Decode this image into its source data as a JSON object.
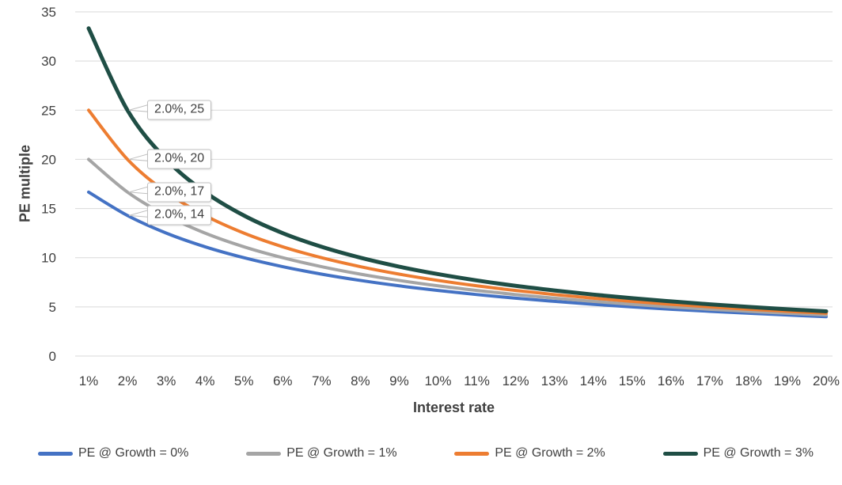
{
  "chart_data": {
    "type": "line",
    "title": "",
    "xlabel": "Interest rate",
    "ylabel": "PE multiple",
    "categories": [
      "1%",
      "2%",
      "3%",
      "4%",
      "5%",
      "6%",
      "7%",
      "8%",
      "9%",
      "10%",
      "11%",
      "12%",
      "13%",
      "14%",
      "15%",
      "16%",
      "17%",
      "18%",
      "19%",
      "20%"
    ],
    "y_ticks": [
      0,
      5,
      10,
      15,
      20,
      25,
      30,
      35
    ],
    "ylim": [
      0,
      35
    ],
    "grid": "horizontal",
    "legend_position": "bottom",
    "colors": {
      "text": "#404040",
      "gridline": "#D9D9D9",
      "callout_border": "#BFBFBF",
      "background": "#FFFFFF"
    },
    "series": [
      {
        "name": "PE @ Growth = 0%",
        "color": "#4472C4",
        "values": [
          16.67,
          14.29,
          12.5,
          11.11,
          10,
          9.09,
          8.33,
          7.69,
          7.14,
          6.67,
          6.25,
          5.88,
          5.56,
          5.26,
          5,
          4.76,
          4.55,
          4.35,
          4.17,
          4
        ]
      },
      {
        "name": "PE @ Growth = 1%",
        "color": "#A5A5A5",
        "values": [
          20,
          16.67,
          14.29,
          12.5,
          11.11,
          10,
          9.09,
          8.33,
          7.69,
          7.14,
          6.67,
          6.25,
          5.88,
          5.56,
          5.26,
          5,
          4.76,
          4.55,
          4.35,
          4.17
        ]
      },
      {
        "name": "PE @ Growth = 2%",
        "color": "#ED7D31",
        "values": [
          25,
          20,
          16.67,
          14.29,
          12.5,
          11.11,
          10,
          9.09,
          8.33,
          7.69,
          7.14,
          6.67,
          6.25,
          5.88,
          5.56,
          5.26,
          5,
          4.76,
          4.55,
          4.35
        ]
      },
      {
        "name": "PE @ Growth = 3%",
        "color": "#1F4E45",
        "values": [
          33.33,
          25,
          20,
          16.67,
          14.29,
          12.5,
          11.11,
          10,
          9.09,
          8.33,
          7.69,
          7.14,
          6.67,
          6.25,
          5.88,
          5.56,
          5.26,
          5,
          4.76,
          4.55
        ]
      }
    ],
    "annotations": [
      {
        "label": "2.0%, 25",
        "series": 3,
        "x_index": 1
      },
      {
        "label": "2.0%, 20",
        "series": 2,
        "x_index": 1
      },
      {
        "label": "2.0%, 17",
        "series": 1,
        "x_index": 1
      },
      {
        "label": "2.0%, 14",
        "series": 0,
        "x_index": 1
      }
    ]
  }
}
